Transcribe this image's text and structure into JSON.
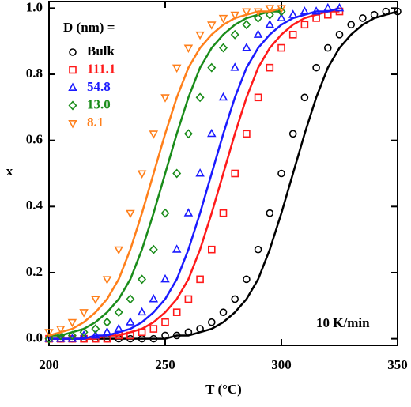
{
  "chart_data": {
    "type": "scatter",
    "x_label": "T (°C)",
    "y_label": "x",
    "legend_title": "D (nm) =",
    "annotation": "10 K/min",
    "xlim": [
      200,
      350
    ],
    "ylim": [
      -0.02,
      1.02
    ],
    "xticks": [
      200,
      250,
      300,
      350
    ],
    "yticks": [
      {
        "value": 0,
        "label": "0.0"
      },
      {
        "value": 0.2,
        "label": "0.2"
      },
      {
        "value": 0.4,
        "label": "0.4"
      },
      {
        "value": 0.6,
        "label": "0.6"
      },
      {
        "value": 0.8,
        "label": "0.8"
      },
      {
        "value": 1,
        "label": "1.0"
      }
    ],
    "legend": "upper left",
    "x": [
      200,
      205,
      210,
      215,
      220,
      225,
      230,
      235,
      240,
      245,
      250,
      255,
      260,
      265,
      270,
      275,
      280,
      285,
      290,
      295,
      300,
      305,
      310,
      315,
      320,
      325,
      330,
      335,
      340,
      345,
      350
    ],
    "series": [
      {
        "name": "Bulk",
        "color": "#000000",
        "marker": "circle",
        "values": [
          0,
          0,
          0,
          0,
          0,
          0,
          0,
          0,
          0,
          0,
          0.01,
          0.01,
          0.02,
          0.03,
          0.05,
          0.08,
          0.12,
          0.18,
          0.27,
          0.38,
          0.5,
          0.62,
          0.73,
          0.82,
          0.88,
          0.92,
          0.95,
          0.97,
          0.98,
          0.99,
          0.99
        ],
        "fit": [
          0,
          0,
          0,
          0,
          0,
          0,
          0,
          0,
          0,
          0,
          0,
          0.01,
          0.01,
          0.02,
          0.03,
          0.05,
          0.08,
          0.12,
          0.18,
          0.27,
          0.38,
          0.5,
          0.62,
          0.73,
          0.82,
          0.88,
          0.92,
          0.95,
          0.97,
          0.98,
          0.99
        ]
      },
      {
        "name": "111.1",
        "color": "#ff1a1a",
        "marker": "square",
        "values": [
          0,
          0,
          0,
          0,
          0,
          0,
          0.01,
          0.01,
          0.02,
          0.03,
          0.05,
          0.08,
          0.12,
          0.18,
          0.27,
          0.38,
          0.5,
          0.62,
          0.73,
          0.82,
          0.88,
          0.92,
          0.95,
          0.97,
          0.98,
          0.99,
          null,
          null,
          null,
          null,
          null
        ],
        "fit": [
          0,
          0,
          0,
          0,
          0,
          0.01,
          0.01,
          0.02,
          0.03,
          0.05,
          0.08,
          0.12,
          0.18,
          0.27,
          0.38,
          0.5,
          0.62,
          0.73,
          0.82,
          0.88,
          0.92,
          0.95,
          0.97,
          0.98,
          0.99,
          0.99,
          null,
          null,
          null,
          null,
          null
        ]
      },
      {
        "name": "54.8",
        "color": "#1a1aff",
        "marker": "triangle-up",
        "values": [
          0,
          0,
          0,
          0.01,
          0.01,
          0.02,
          0.03,
          0.05,
          0.08,
          0.12,
          0.18,
          0.27,
          0.38,
          0.5,
          0.62,
          0.73,
          0.82,
          0.88,
          0.92,
          0.95,
          0.97,
          0.98,
          0.99,
          0.99,
          1,
          1,
          null,
          null,
          null,
          null,
          null
        ],
        "fit": [
          0,
          0,
          0,
          0,
          0.01,
          0.01,
          0.02,
          0.03,
          0.05,
          0.08,
          0.12,
          0.18,
          0.27,
          0.38,
          0.5,
          0.62,
          0.73,
          0.82,
          0.88,
          0.92,
          0.95,
          0.97,
          0.98,
          0.99,
          0.99,
          1,
          null,
          null,
          null,
          null,
          null
        ]
      },
      {
        "name": "13.0",
        "color": "#1a8c1a",
        "marker": "diamond",
        "values": [
          0,
          0.01,
          0.01,
          0.02,
          0.03,
          0.05,
          0.08,
          0.12,
          0.18,
          0.27,
          0.38,
          0.5,
          0.62,
          0.73,
          0.82,
          0.88,
          0.92,
          0.95,
          0.97,
          0.98,
          0.99,
          null,
          null,
          null,
          null,
          null,
          null,
          null,
          null,
          null,
          null
        ],
        "fit": [
          0.01,
          0.01,
          0.02,
          0.03,
          0.05,
          0.08,
          0.12,
          0.18,
          0.27,
          0.38,
          0.5,
          0.62,
          0.73,
          0.82,
          0.88,
          0.92,
          0.95,
          0.97,
          0.98,
          0.99,
          0.99,
          null,
          null,
          null,
          null,
          null,
          null,
          null,
          null,
          null,
          null
        ]
      },
      {
        "name": "8.1",
        "color": "#ff7f1a",
        "marker": "triangle-down",
        "values": [
          0.02,
          0.03,
          0.05,
          0.08,
          0.12,
          0.18,
          0.27,
          0.38,
          0.5,
          0.62,
          0.73,
          0.82,
          0.88,
          0.92,
          0.95,
          0.97,
          0.98,
          0.99,
          0.99,
          1,
          1,
          null,
          null,
          null,
          null,
          null,
          null,
          null,
          null,
          null,
          null
        ],
        "fit": [
          0.01,
          0.02,
          0.03,
          0.05,
          0.08,
          0.12,
          0.18,
          0.27,
          0.38,
          0.5,
          0.62,
          0.73,
          0.82,
          0.88,
          0.92,
          0.95,
          0.97,
          0.98,
          0.99,
          0.99,
          1,
          null,
          null,
          null,
          null,
          null,
          null,
          null,
          null,
          null,
          null
        ]
      }
    ]
  }
}
